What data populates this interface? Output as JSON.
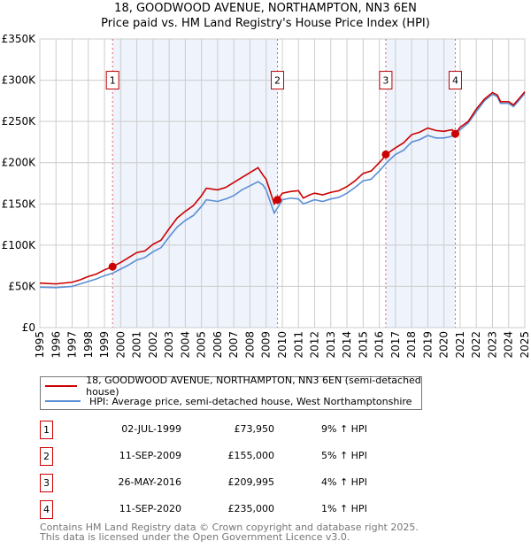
{
  "title_line1": "18, GOODWOOD AVENUE, NORTHAMPTON, NN3 6EN",
  "title_line2": "Price paid vs. HM Land Registry's House Price Index (HPI)",
  "chart_data": {
    "type": "line",
    "ylim": [
      0,
      350
    ],
    "xlim": [
      1995,
      2025
    ],
    "yticks": [
      0,
      50,
      100,
      150,
      200,
      250,
      300,
      350
    ],
    "ytick_labels": [
      "£0",
      "£50K",
      "£100K",
      "£150K",
      "£200K",
      "£250K",
      "£300K",
      "£350K"
    ],
    "xticks": [
      "1995",
      "1996",
      "1997",
      "1998",
      "1999",
      "2000",
      "2001",
      "2002",
      "2003",
      "2004",
      "2005",
      "2006",
      "2007",
      "2008",
      "2009",
      "2010",
      "2011",
      "2012",
      "2013",
      "2014",
      "2015",
      "2016",
      "2017",
      "2018",
      "2019",
      "2020",
      "2021",
      "2022",
      "2023",
      "2024",
      "2025"
    ],
    "grid": true,
    "shaded_ranges": [
      [
        1999.5,
        2009.7
      ],
      [
        2016.4,
        2020.7
      ]
    ],
    "series": [
      {
        "name": "18, GOODWOOD AVENUE, NORTHAMPTON, NN3 6EN (semi-detached house)",
        "color": "#cc0000",
        "x": [
          1995,
          1996,
          1997,
          1997.5,
          1998,
          1998.5,
          1999,
          1999.5,
          2000,
          2000.5,
          2001,
          2001.5,
          2002,
          2002.5,
          2003,
          2003.5,
          2004,
          2004.5,
          2005,
          2005.3,
          2006,
          2006.5,
          2007,
          2007.5,
          2008,
          2008.5,
          2008.8,
          2009,
          2009.3,
          2009.5,
          2009.7,
          2010,
          2010.5,
          2011,
          2011.3,
          2011.7,
          2012,
          2012.5,
          2013,
          2013.5,
          2014,
          2014.5,
          2015,
          2015.5,
          2016,
          2016.5,
          2017,
          2017.5,
          2018,
          2018.5,
          2019,
          2019.5,
          2020,
          2020.5,
          2020.7,
          2021,
          2021.5,
          2022,
          2022.5,
          2023,
          2023.3,
          2023.5,
          2024,
          2024.3,
          2024.7,
          2025
        ],
        "y": [
          54,
          53,
          55,
          58,
          62,
          65,
          70,
          74,
          79,
          85,
          91,
          93,
          101,
          106,
          120,
          133,
          141,
          148,
          160,
          169,
          167,
          170,
          176,
          182,
          188,
          194,
          185,
          180,
          162,
          150,
          155,
          163,
          165,
          166,
          157,
          161,
          163,
          161,
          164,
          166,
          171,
          178,
          187,
          190,
          200,
          211,
          218,
          224,
          234,
          237,
          242,
          239,
          238,
          240,
          235,
          243,
          250,
          265,
          277,
          285,
          282,
          274,
          274,
          270,
          279,
          286
        ]
      },
      {
        "name": "HPI: Average price, semi-detached house, West Northamptonshire",
        "color": "#5b8fd4",
        "x": [
          1995,
          1996,
          1997,
          1997.5,
          1998,
          1998.5,
          1999,
          1999.5,
          2000,
          2000.5,
          2001,
          2001.5,
          2002,
          2002.5,
          2003,
          2003.5,
          2004,
          2004.5,
          2005,
          2005.3,
          2006,
          2006.5,
          2007,
          2007.5,
          2008,
          2008.5,
          2008.8,
          2009,
          2009.3,
          2009.5,
          2009.7,
          2010,
          2010.5,
          2011,
          2011.3,
          2011.7,
          2012,
          2012.5,
          2013,
          2013.5,
          2014,
          2014.5,
          2015,
          2015.5,
          2016,
          2016.5,
          2017,
          2017.5,
          2018,
          2018.5,
          2019,
          2019.5,
          2020,
          2020.5,
          2020.7,
          2021,
          2021.5,
          2022,
          2022.5,
          2023,
          2023.3,
          2023.5,
          2024,
          2024.3,
          2024.7,
          2025
        ],
        "y": [
          49,
          48.5,
          50,
          53,
          56,
          59,
          63,
          66,
          71,
          76,
          82,
          85,
          92,
          97,
          110,
          122,
          130,
          136,
          147,
          155,
          153,
          156,
          160,
          167,
          172,
          177,
          173,
          167,
          150,
          139,
          145,
          155,
          157,
          156,
          150,
          153,
          155,
          153,
          156,
          158,
          163,
          170,
          178,
          180,
          190,
          201,
          210,
          215,
          225,
          228,
          233,
          230,
          230,
          232,
          235,
          240,
          248,
          262,
          275,
          283,
          280,
          272,
          272,
          268,
          277,
          284
        ]
      }
    ],
    "sales": [
      {
        "label": "1",
        "x": 1999.5,
        "y": 73.95
      },
      {
        "label": "2",
        "x": 2009.7,
        "y": 155
      },
      {
        "label": "3",
        "x": 2016.4,
        "y": 209.995
      },
      {
        "label": "4",
        "x": 2020.7,
        "y": 235
      }
    ]
  },
  "legend": {
    "property": "18, GOODWOOD AVENUE, NORTHAMPTON, NN3 6EN (semi-detached house)",
    "hpi": "HPI: Average price, semi-detached house, West Northamptonshire",
    "property_color": "#cc0000",
    "hpi_color": "#5b8fd4"
  },
  "transactions": [
    {
      "num": "1",
      "date": "02-JUL-1999",
      "price": "£73,950",
      "hpi": "9% ↑ HPI"
    },
    {
      "num": "2",
      "date": "11-SEP-2009",
      "price": "£155,000",
      "hpi": "5% ↑ HPI"
    },
    {
      "num": "3",
      "date": "26-MAY-2016",
      "price": "£209,995",
      "hpi": "4% ↑ HPI"
    },
    {
      "num": "4",
      "date": "11-SEP-2020",
      "price": "£235,000",
      "hpi": "1% ↑ HPI"
    }
  ],
  "footer": {
    "line1": "Contains HM Land Registry data © Crown copyright and database right 2025.",
    "line2": "This data is licensed under the Open Government Licence v3.0."
  }
}
